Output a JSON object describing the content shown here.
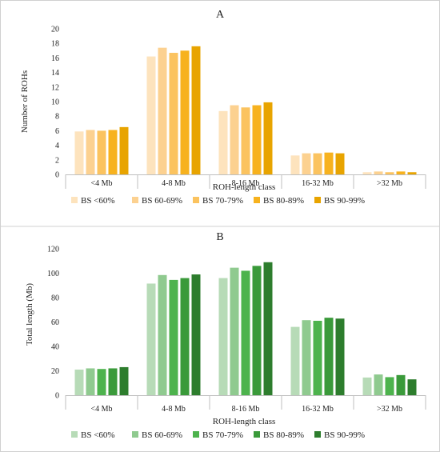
{
  "chart_data": [
    {
      "type": "bar",
      "title": "A",
      "xlabel": "ROH-length class",
      "ylabel": "Number of ROHs",
      "categories": [
        "<4 Mb",
        "4-8 Mb",
        "8-16 Mb",
        "16-32 Mb",
        ">32 Mb"
      ],
      "ylim": [
        0,
        20
      ],
      "yticks": [
        0,
        2,
        4,
        6,
        8,
        10,
        12,
        14,
        16,
        18,
        20
      ],
      "grid": false,
      "legend_position": "bottom",
      "series": [
        {
          "name": "BS <60%",
          "color": "#fde3bd",
          "values": [
            5.9,
            16.2,
            8.7,
            2.6,
            0.3
          ]
        },
        {
          "name": "BS 60-69%",
          "color": "#fcd190",
          "values": [
            6.1,
            17.4,
            9.5,
            2.9,
            0.4
          ]
        },
        {
          "name": "BS 70-79%",
          "color": "#fbc35f",
          "values": [
            6.0,
            16.7,
            9.2,
            2.9,
            0.3
          ]
        },
        {
          "name": "BS 80-89%",
          "color": "#f7b21e",
          "values": [
            6.1,
            17.0,
            9.5,
            3.0,
            0.4
          ]
        },
        {
          "name": "BS 90-99%",
          "color": "#e8a400",
          "values": [
            6.5,
            17.6,
            9.9,
            2.9,
            0.3
          ]
        }
      ]
    },
    {
      "type": "bar",
      "title": "B",
      "xlabel": "ROH-length class",
      "ylabel": "Total length (Mb)",
      "categories": [
        "<4 Mb",
        "4-8 Mb",
        "8-16 Mb",
        "16-32 Mb",
        ">32 Mb"
      ],
      "ylim": [
        0,
        120
      ],
      "yticks": [
        0,
        20,
        40,
        60,
        80,
        100,
        120
      ],
      "grid": false,
      "legend_position": "bottom",
      "series": [
        {
          "name": "BS <60%",
          "color": "#b7dbb7",
          "values": [
            21,
            91.5,
            96,
            56,
            14.5
          ]
        },
        {
          "name": "BS 60-69%",
          "color": "#8fca8f",
          "values": [
            22,
            98.5,
            104.5,
            61.5,
            17
          ]
        },
        {
          "name": "BS 70-79%",
          "color": "#4db34d",
          "values": [
            21.5,
            94.5,
            102,
            61,
            14.8
          ]
        },
        {
          "name": "BS 80-89%",
          "color": "#3a9a3a",
          "values": [
            22,
            96,
            106,
            63.5,
            16.5
          ]
        },
        {
          "name": "BS 90-99%",
          "color": "#2d7d2d",
          "values": [
            23,
            99,
            109,
            62.8,
            13
          ]
        }
      ]
    }
  ]
}
